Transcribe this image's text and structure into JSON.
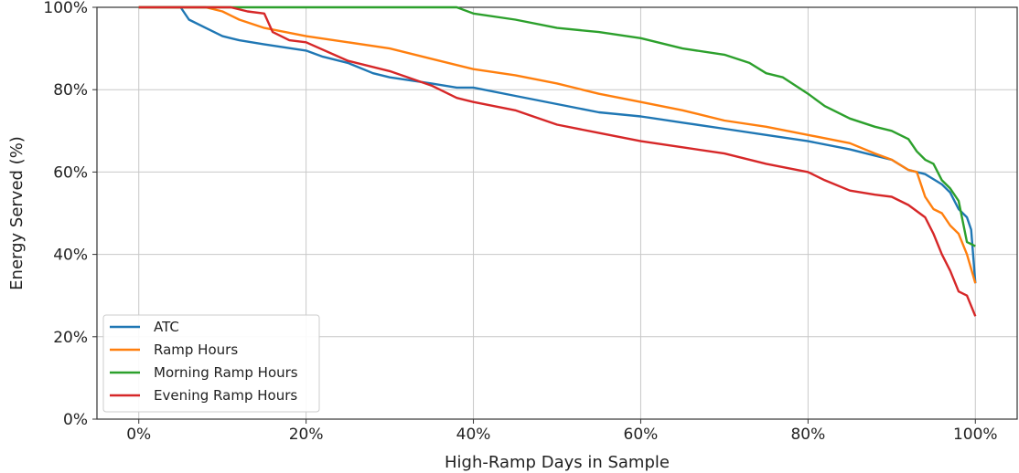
{
  "chart_data": {
    "type": "line",
    "xlabel": "High-Ramp Days in Sample",
    "ylabel": "Energy Served (%)",
    "xlim": [
      -5,
      105
    ],
    "ylim": [
      0,
      100
    ],
    "x_ticks": [
      0,
      20,
      40,
      60,
      80,
      100
    ],
    "x_tick_labels": [
      "0%",
      "20%",
      "40%",
      "60%",
      "80%",
      "100%"
    ],
    "y_ticks": [
      0,
      20,
      40,
      60,
      80,
      100
    ],
    "y_tick_labels": [
      "0%",
      "20%",
      "40%",
      "60%",
      "80%",
      "100%"
    ],
    "grid": true,
    "legend_position": "lower-left",
    "series": [
      {
        "name": "ATC",
        "color": "#1f77b4",
        "x": [
          0,
          5,
          6,
          8,
          10,
          12,
          15,
          20,
          22,
          25,
          28,
          30,
          35,
          38,
          40,
          45,
          50,
          55,
          60,
          65,
          70,
          75,
          80,
          85,
          88,
          90,
          92,
          94,
          96,
          97,
          98,
          99,
          99.5,
          100
        ],
        "y": [
          100,
          100,
          97,
          95,
          93,
          92,
          91,
          89.5,
          88,
          86.5,
          84,
          83,
          81.5,
          80.5,
          80.5,
          78.5,
          76.5,
          74.5,
          73.5,
          72,
          70.5,
          69,
          67.5,
          65.5,
          64,
          63,
          60.5,
          59.5,
          57,
          55,
          51,
          49,
          46,
          33
        ]
      },
      {
        "name": "Ramp Hours",
        "color": "#ff7f0e",
        "x": [
          0,
          8,
          10,
          12,
          15,
          20,
          25,
          30,
          35,
          40,
          45,
          50,
          55,
          60,
          65,
          70,
          75,
          80,
          85,
          88,
          90,
          92,
          93,
          94,
          95,
          96,
          97,
          98,
          99,
          100
        ],
        "y": [
          100,
          100,
          99,
          97,
          95,
          93,
          91.5,
          90,
          87.5,
          85,
          83.5,
          81.5,
          79,
          77,
          75,
          72.5,
          71,
          69,
          67,
          64.5,
          63,
          60.5,
          60,
          54,
          51,
          50,
          47,
          45,
          40,
          33
        ]
      },
      {
        "name": "Morning Ramp Hours",
        "color": "#2ca02c",
        "x": [
          0,
          38,
          40,
          45,
          50,
          55,
          60,
          65,
          70,
          73,
          75,
          77,
          80,
          82,
          85,
          88,
          90,
          92,
          93,
          94,
          95,
          96,
          97,
          98,
          99,
          100
        ],
        "y": [
          100,
          100,
          98.5,
          97,
          95,
          94,
          92.5,
          90,
          88.5,
          86.5,
          84,
          83,
          79,
          76,
          73,
          71,
          70,
          68,
          65,
          63,
          62,
          58,
          56,
          53,
          43,
          42
        ]
      },
      {
        "name": "Evening Ramp Hours",
        "color": "#d62728",
        "x": [
          0,
          11,
          13,
          15,
          16,
          18,
          20,
          25,
          30,
          35,
          38,
          40,
          45,
          50,
          55,
          60,
          65,
          70,
          75,
          80,
          82,
          85,
          88,
          90,
          92,
          94,
          95,
          96,
          97,
          98,
          99,
          100
        ],
        "y": [
          100,
          100,
          99,
          98.5,
          94,
          92,
          91.5,
          87,
          84.5,
          81,
          78,
          77,
          75,
          71.5,
          69.5,
          67.5,
          66,
          64.5,
          62,
          60,
          58,
          55.5,
          54.5,
          54,
          52,
          49,
          45,
          40,
          36,
          31,
          30,
          25
        ]
      }
    ]
  }
}
